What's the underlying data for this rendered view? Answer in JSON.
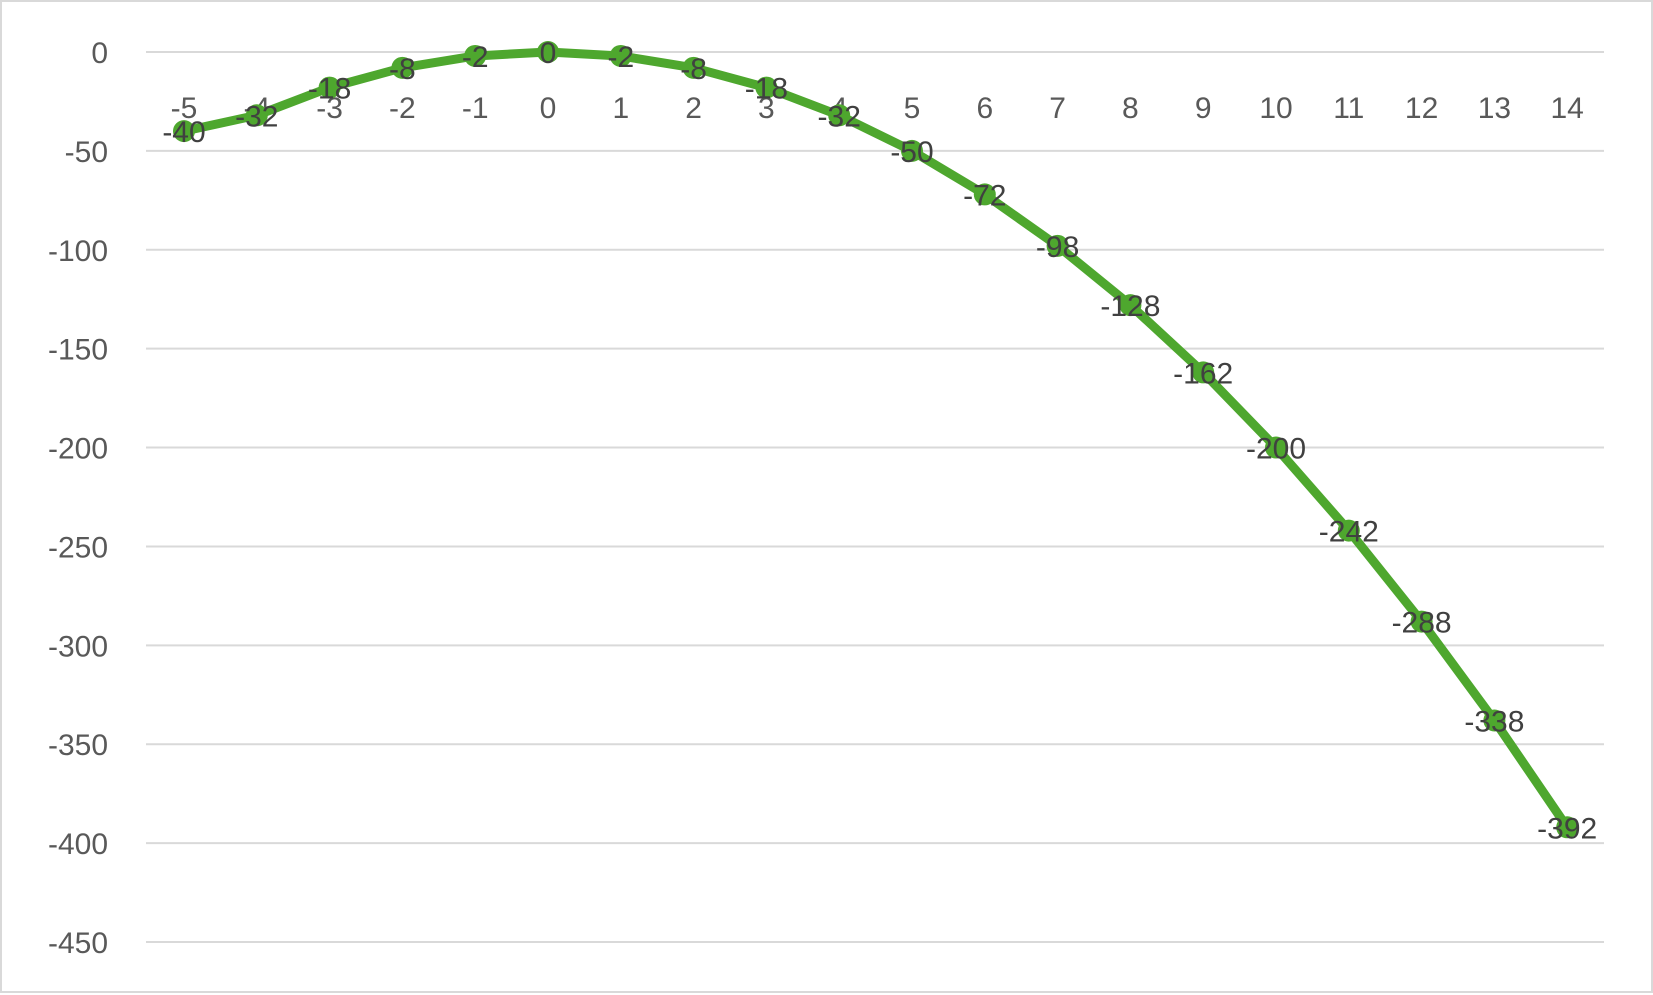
{
  "chart_data": {
    "type": "line",
    "title": "",
    "xlabel": "",
    "ylabel": "",
    "x": [
      -5,
      -4,
      -3,
      -2,
      -1,
      0,
      1,
      2,
      3,
      4,
      5,
      6,
      7,
      8,
      9,
      10,
      11,
      12,
      13,
      14
    ],
    "series": [
      {
        "values": [
          -40,
          -32,
          -18,
          -8,
          -2,
          0,
          -2,
          -8,
          -18,
          -32,
          -50,
          -72,
          -98,
          -128,
          -162,
          -200,
          -242,
          -288,
          -338,
          -392
        ],
        "color": "#4ea72e"
      }
    ],
    "ylim": [
      -450,
      0
    ],
    "yticks": [
      0,
      -50,
      -100,
      -150,
      -200,
      -250,
      -300,
      -350,
      -400,
      -450
    ],
    "x_axis_position": "at y = 0 (labels drawn just below the zero line)",
    "grid": true,
    "gridline_color": "#d9d9d9",
    "data_labels": true,
    "markers": "circle",
    "legend": "none"
  }
}
